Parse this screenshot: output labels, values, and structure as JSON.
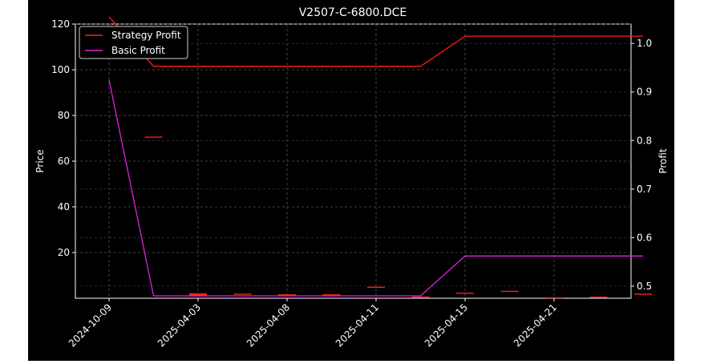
{
  "chart_data": {
    "type": "line",
    "title": "V2507-C-6800.DCE",
    "ylabel": "Price",
    "ylabel_right": "Profit",
    "x_ticks": [
      "2024-10-09",
      "2025-04-03",
      "2025-04-08",
      "2025-04-11",
      "2025-04-15",
      "2025-04-21"
    ],
    "ylim_left": [
      0,
      120
    ],
    "y_ticks_left": [
      20,
      40,
      60,
      80,
      100,
      120
    ],
    "ylim_right": [
      0.475,
      1.04
    ],
    "y_ticks_right": [
      0.5,
      0.6,
      0.7,
      0.8,
      0.9,
      1.0
    ],
    "grid": true,
    "legend_position": "top-left",
    "background": "#000000",
    "series": [
      {
        "name": "Strategy Profit",
        "axis": "right",
        "color": "#ff1a1a",
        "x_index": [
          0,
          1,
          2,
          3,
          4,
          5,
          6,
          7,
          8,
          9,
          10,
          11,
          12
        ],
        "values": [
          1.055,
          0.953,
          0.953,
          0.953,
          0.953,
          0.953,
          0.953,
          0.953,
          1.015,
          1.015,
          1.015,
          1.015,
          1.015
        ]
      },
      {
        "name": "Basic Profit",
        "axis": "right",
        "color": "#e020e0",
        "x_index": [
          0,
          1,
          2,
          3,
          4,
          5,
          6,
          7,
          8,
          9,
          10,
          11,
          12
        ],
        "values": [
          0.925,
          0.48,
          0.48,
          0.48,
          0.48,
          0.48,
          0.48,
          0.48,
          0.562,
          0.562,
          0.562,
          0.562,
          0.562
        ]
      }
    ],
    "price_marks": {
      "color": "#ff1a1a",
      "x_index": [
        1,
        2,
        3,
        4,
        5,
        6,
        7,
        8,
        9,
        10,
        11,
        12
      ],
      "values": [
        70.5,
        1.5,
        1.8,
        1.5,
        1.5,
        4.8,
        0.5,
        2.2,
        3.0,
        0.2,
        0.5,
        1.8
      ]
    },
    "x_tick_index": [
      0,
      2,
      4,
      6,
      8,
      10
    ]
  }
}
